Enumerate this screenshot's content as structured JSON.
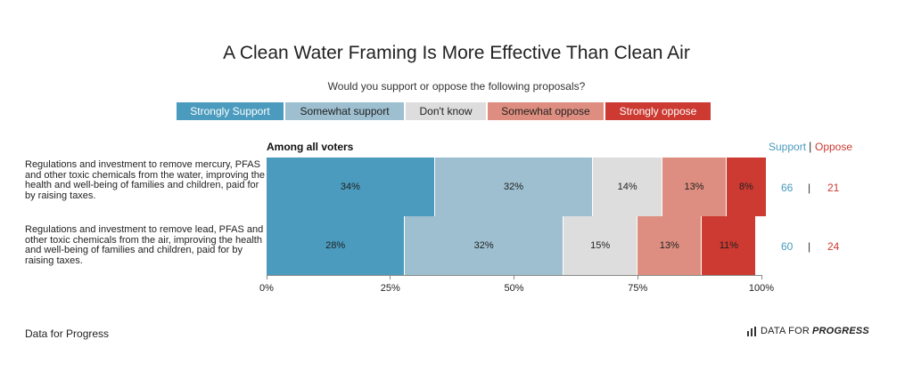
{
  "title": "A Clean Water Framing Is More Effective Than Clean Air",
  "subtitle": "Would you support or oppose the following proposals?",
  "colors": {
    "strongly_support": "#4a9bbd",
    "somewhat_support": "#9dbfcf",
    "dont_know": "#dddddd",
    "somewhat_oppose": "#de8e80",
    "strongly_oppose": "#cc3a31",
    "support_text": "#4a9bbd",
    "oppose_text": "#cc3a31"
  },
  "legend": [
    {
      "label": "Strongly Support",
      "color": "#4a9bbd"
    },
    {
      "label": "Somewhat support",
      "color": "#9dbfcf"
    },
    {
      "label": "Don't know",
      "color": "#dddddd"
    },
    {
      "label": "Somewhat oppose",
      "color": "#de8e80"
    },
    {
      "label": "Strongly oppose",
      "color": "#cc3a31"
    }
  ],
  "section_label": "Among all voters",
  "net_header": {
    "support": "Support",
    "separator": "|",
    "oppose": "Oppose"
  },
  "source": "Data for Progress",
  "brand": {
    "prefix": "DATA FOR",
    "emphasis": "PROGRESS"
  },
  "chart_data": {
    "type": "bar",
    "orientation": "horizontal",
    "stacked": true,
    "categories": [
      "Regulations and investment to remove mercury, PFAS and other toxic chemicals from the water, improving the health and well-being of families and children, paid for by raising taxes.",
      "Regulations and investment to remove lead, PFAS and other toxic chemicals from the air, improving the health and well-being of families and children, paid for by raising taxes."
    ],
    "series": [
      {
        "name": "Strongly Support",
        "values": [
          34,
          28
        ],
        "labels": [
          "34%",
          "28%"
        ]
      },
      {
        "name": "Somewhat support",
        "values": [
          32,
          32
        ],
        "labels": [
          "32%",
          "32%"
        ]
      },
      {
        "name": "Don't know",
        "values": [
          14,
          15
        ],
        "labels": [
          "14%",
          "15%"
        ]
      },
      {
        "name": "Somewhat oppose",
        "values": [
          13,
          13
        ],
        "labels": [
          "13%",
          "13%"
        ]
      },
      {
        "name": "Strongly oppose",
        "values": [
          8,
          11
        ],
        "labels": [
          "8%",
          "11%"
        ]
      }
    ],
    "net": [
      {
        "support": "66",
        "oppose": "21"
      },
      {
        "support": "60",
        "oppose": "24"
      }
    ],
    "xlim": [
      0,
      100
    ],
    "xticks": [
      "0%",
      "25%",
      "50%",
      "75%",
      "100%"
    ],
    "xtick_values": [
      0,
      25,
      50,
      75,
      100
    ],
    "legend_position": "top",
    "grid": false
  }
}
